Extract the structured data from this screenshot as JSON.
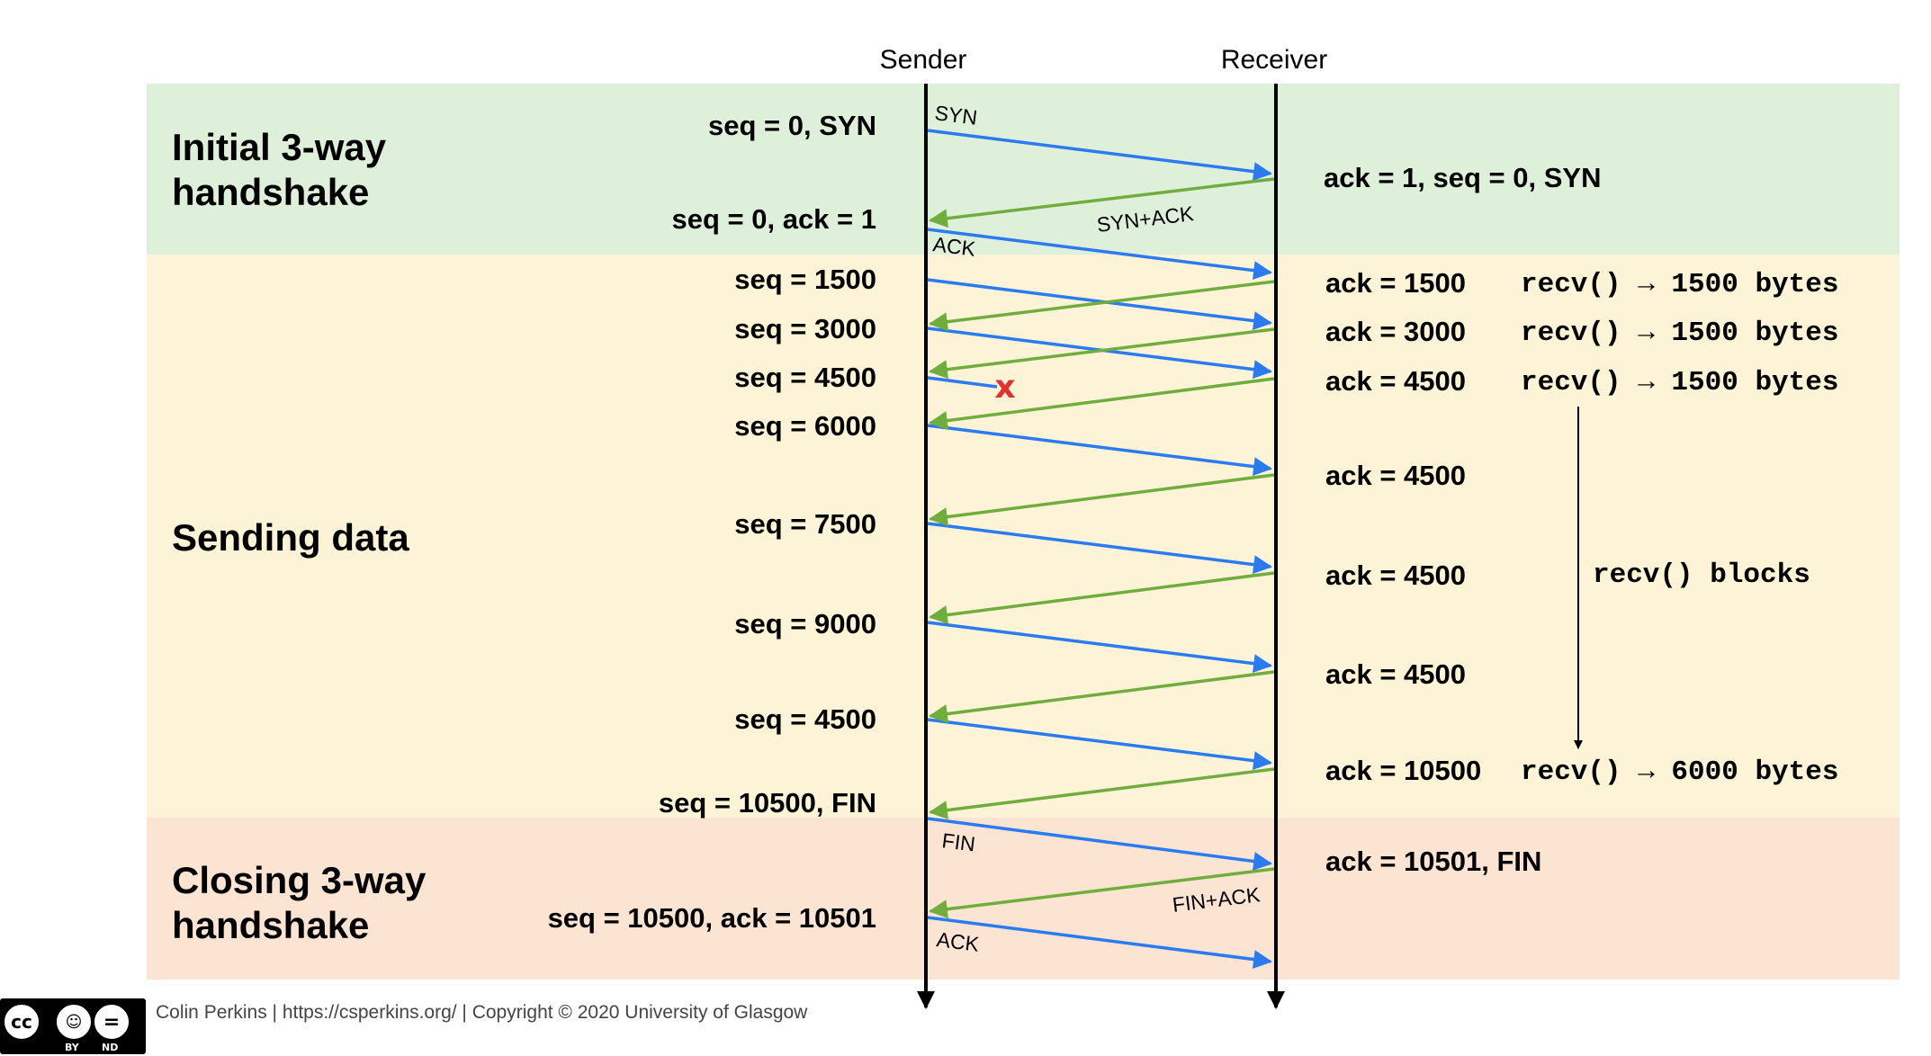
{
  "columns": {
    "sender": "Sender",
    "receiver": "Receiver"
  },
  "sections": [
    {
      "title_lines": [
        "Initial 3-way",
        "handshake"
      ],
      "color": "#dff0da"
    },
    {
      "title_lines": [
        "Sending data"
      ],
      "color": "#fdf3d6"
    },
    {
      "title_lines": [
        "Closing 3-way",
        "handshake"
      ],
      "color": "#fce4d3"
    }
  ],
  "sender_labels": [
    "seq = 0, SYN",
    "seq = 0, ack = 1",
    "seq = 1500",
    "seq = 3000",
    "seq = 4500",
    "seq = 6000",
    "seq = 7500",
    "seq = 9000",
    "seq = 4500",
    "seq = 10500, FIN",
    "seq = 10500, ack = 10501"
  ],
  "receiver_labels": [
    "ack = 1, seq = 0, SYN",
    "ack = 1500",
    "ack = 3000",
    "ack = 4500",
    "ack = 4500",
    "ack = 4500",
    "ack = 4500",
    "ack = 10500",
    "ack = 10501, FIN"
  ],
  "recv_notes": [
    "recv() → 1500 bytes",
    "recv() → 1500 bytes",
    "recv() → 1500 bytes",
    "recv() blocks",
    "recv() → 6000 bytes"
  ],
  "arrow_labels": [
    "SYN",
    "SYN+ACK",
    "ACK",
    "FIN",
    "FIN+ACK",
    "ACK"
  ],
  "loss_marker": "x",
  "colors": {
    "data_arrow": "#2b7bf0",
    "ack_arrow": "#6fae3c",
    "loss": "#e53030",
    "timeline": "#000000"
  },
  "footer": {
    "credit": "Colin Perkins | https://csperkins.org/ | Copyright © 2020 University of Glasgow",
    "license_badge": {
      "cc": "cc",
      "by": "BY",
      "nd": "ND"
    }
  }
}
